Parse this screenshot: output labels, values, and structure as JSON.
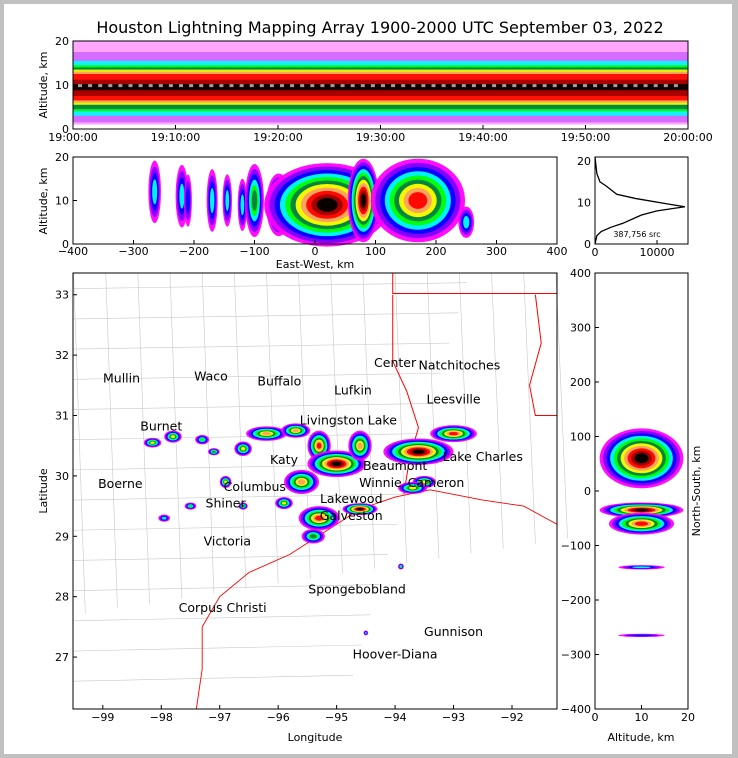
{
  "title": "Houston Lightning Mapping Array 1900-2000 UTC September 03, 2022",
  "colors": {
    "scale": [
      "#ffffff",
      "#ff00ff",
      "#8000ff",
      "#0000ff",
      "#00ffff",
      "#00ff00",
      "#008040",
      "#ffff00",
      "#ffa060",
      "#ff0000",
      "#a00000",
      "#000000",
      "#a0a0a0",
      "#ffffff"
    ],
    "border": "#ff0000",
    "county": "#c8c8c8",
    "site": "#0000ff",
    "site_special": "#ff8040"
  },
  "chart_data": [
    {
      "type": "heatmap",
      "name": "altitude-time",
      "ylabel": "Altitude, km",
      "ylim": [
        0,
        20
      ],
      "xlim": [
        "19:00:00",
        "20:00:00"
      ],
      "xticks": [
        "19:00:00",
        "19:10:00",
        "19:20:00",
        "19:30:00",
        "19:40:00",
        "19:50:00",
        "20:00:00"
      ],
      "yticks": [
        "0",
        "10",
        "20"
      ],
      "core_altitude_km": [
        6,
        13
      ],
      "peak_altitude_km": 9.5
    },
    {
      "type": "heatmap",
      "name": "altitude-eastwest",
      "xlabel": "East-West, km",
      "ylabel": "Altitude, km",
      "xlim": [
        -400,
        400
      ],
      "ylim": [
        0,
        20
      ],
      "xticks": [
        "−400",
        "−300",
        "−200",
        "−100",
        "0",
        "100",
        "200",
        "300",
        "400"
      ],
      "yticks": [
        "0",
        "10",
        "20"
      ],
      "cells": [
        {
          "x": -265,
          "z": 12,
          "w": 8,
          "h": 12,
          "i": 4
        },
        {
          "x": -220,
          "z": 11,
          "w": 8,
          "h": 12,
          "i": 4
        },
        {
          "x": -210,
          "z": 10,
          "w": 5,
          "h": 10,
          "i": 3
        },
        {
          "x": -170,
          "z": 10,
          "w": 7,
          "h": 12,
          "i": 4
        },
        {
          "x": -145,
          "z": 10,
          "w": 6,
          "h": 10,
          "i": 4
        },
        {
          "x": -120,
          "z": 9,
          "w": 6,
          "h": 10,
          "i": 4
        },
        {
          "x": -100,
          "z": 10,
          "w": 12,
          "h": 14,
          "i": 6
        },
        {
          "x": -60,
          "z": 9,
          "w": 16,
          "h": 12,
          "i": 7
        },
        {
          "x": 20,
          "z": 9,
          "w": 80,
          "h": 16,
          "i": 11
        },
        {
          "x": 80,
          "z": 10,
          "w": 20,
          "h": 16,
          "i": 11
        },
        {
          "x": 170,
          "z": 10,
          "w": 60,
          "h": 16,
          "i": 9
        },
        {
          "x": 250,
          "z": 5,
          "w": 10,
          "h": 6,
          "i": 4
        }
      ]
    },
    {
      "type": "line",
      "name": "altitude-histogram",
      "annotation": "387,756 src",
      "xlim": [
        0,
        15000
      ],
      "ylim": [
        0,
        21
      ],
      "xticks": [
        "0",
        "10000"
      ],
      "yticks": [
        "0",
        "10",
        "20"
      ],
      "x": [
        0,
        300,
        1000,
        2500,
        4500,
        6000,
        7500,
        10000,
        14500,
        12000,
        6500,
        3500,
        1800,
        800,
        300,
        0
      ],
      "y": [
        0,
        2,
        3,
        4,
        5,
        6,
        7,
        8,
        9,
        9.6,
        11,
        12,
        14,
        15,
        17,
        21
      ]
    },
    {
      "type": "heatmap",
      "name": "plan-view-map",
      "xlabel": "Longitude",
      "ylabel": "Latitude",
      "xlim": [
        -99.51,
        -91.23
      ],
      "ylim": [
        26.14,
        33.36
      ],
      "xticks": [
        "−99",
        "−98",
        "−97",
        "−96",
        "−95",
        "−94",
        "−93",
        "−92"
      ],
      "yticks": [
        "27",
        "28",
        "29",
        "30",
        "31",
        "32",
        "33"
      ],
      "cells": [
        {
          "lon": -98.15,
          "lat": 30.55,
          "w": 0.15,
          "h": 0.08,
          "i": 7
        },
        {
          "lon": -97.8,
          "lat": 30.65,
          "w": 0.15,
          "h": 0.1,
          "i": 7
        },
        {
          "lon": -97.3,
          "lat": 30.6,
          "w": 0.12,
          "h": 0.08,
          "i": 5
        },
        {
          "lon": -97.1,
          "lat": 30.4,
          "w": 0.1,
          "h": 0.06,
          "i": 6
        },
        {
          "lon": -96.6,
          "lat": 30.45,
          "w": 0.15,
          "h": 0.12,
          "i": 7
        },
        {
          "lon": -96.2,
          "lat": 30.7,
          "w": 0.35,
          "h": 0.12,
          "i": 8
        },
        {
          "lon": -95.7,
          "lat": 30.75,
          "w": 0.25,
          "h": 0.12,
          "i": 8
        },
        {
          "lon": -95.3,
          "lat": 30.5,
          "w": 0.2,
          "h": 0.25,
          "i": 9
        },
        {
          "lon": -95.0,
          "lat": 30.2,
          "w": 0.5,
          "h": 0.22,
          "i": 11
        },
        {
          "lon": -94.6,
          "lat": 30.5,
          "w": 0.2,
          "h": 0.25,
          "i": 8
        },
        {
          "lon": -93.6,
          "lat": 30.4,
          "w": 0.6,
          "h": 0.22,
          "i": 11
        },
        {
          "lon": -93.0,
          "lat": 30.7,
          "w": 0.4,
          "h": 0.14,
          "i": 9
        },
        {
          "lon": -93.5,
          "lat": 29.9,
          "w": 0.2,
          "h": 0.1,
          "i": 7
        },
        {
          "lon": -93.7,
          "lat": 29.8,
          "w": 0.25,
          "h": 0.1,
          "i": 7
        },
        {
          "lon": -95.3,
          "lat": 29.3,
          "w": 0.35,
          "h": 0.2,
          "i": 9
        },
        {
          "lon": -95.4,
          "lat": 29.0,
          "w": 0.2,
          "h": 0.12,
          "i": 6
        },
        {
          "lon": -94.6,
          "lat": 29.45,
          "w": 0.3,
          "h": 0.1,
          "i": 11
        },
        {
          "lon": -95.9,
          "lat": 29.55,
          "w": 0.15,
          "h": 0.1,
          "i": 7
        },
        {
          "lon": -95.6,
          "lat": 29.9,
          "w": 0.3,
          "h": 0.2,
          "i": 8
        },
        {
          "lon": -96.6,
          "lat": 29.5,
          "w": 0.08,
          "h": 0.06,
          "i": 6
        },
        {
          "lon": -96.9,
          "lat": 29.9,
          "w": 0.1,
          "h": 0.1,
          "i": 7
        },
        {
          "lon": -97.5,
          "lat": 29.5,
          "w": 0.1,
          "h": 0.06,
          "i": 5
        },
        {
          "lon": -97.95,
          "lat": 29.3,
          "w": 0.1,
          "h": 0.06,
          "i": 4
        },
        {
          "lon": -93.9,
          "lat": 28.5,
          "w": 0.05,
          "h": 0.05,
          "i": 5
        },
        {
          "lon": -94.5,
          "lat": 27.4,
          "w": 0.04,
          "h": 0.04,
          "i": 4
        }
      ],
      "places": [
        {
          "name": "Mullin",
          "lon": -98.68,
          "lat": 31.55,
          "kind": "special"
        },
        {
          "name": "Waco",
          "lon": -97.15,
          "lat": 31.58
        },
        {
          "name": "Buffalo",
          "lon": -95.98,
          "lat": 31.5
        },
        {
          "name": "Lufkin",
          "lon": -94.72,
          "lat": 31.35
        },
        {
          "name": "Center",
          "lon": -94.0,
          "lat": 31.8
        },
        {
          "name": "Natchitoches",
          "lon": -92.9,
          "lat": 31.76
        },
        {
          "name": "Leesville",
          "lon": -93.0,
          "lat": 31.2
        },
        {
          "name": "Burnet",
          "lon": -98.0,
          "lat": 30.75
        },
        {
          "name": "Boerne",
          "lon": -98.7,
          "lat": 29.8
        },
        {
          "name": "Lake Charles",
          "lon": -92.5,
          "lat": 30.25
        },
        {
          "name": "Beaumont",
          "lon": -94.0,
          "lat": 30.1
        },
        {
          "name": "Cameron",
          "lon": -93.3,
          "lat": 29.82
        },
        {
          "name": "Winnie",
          "lon": -94.25,
          "lat": 29.82
        },
        {
          "name": "Lakewood",
          "lon": -94.75,
          "lat": 29.55
        },
        {
          "name": "Galveston",
          "lon": -94.75,
          "lat": 29.35
        },
        {
          "name": "Columbus",
          "lon": -96.4,
          "lat": 29.75
        },
        {
          "name": "Shiner",
          "lon": -96.9,
          "lat": 29.48
        },
        {
          "name": "Victoria",
          "lon": -96.87,
          "lat": 28.85
        },
        {
          "name": "Livingston Lake",
          "lon": -94.8,
          "lat": 30.85
        },
        {
          "name": "Katy",
          "lon": -95.9,
          "lat": 30.2
        },
        {
          "name": "Corpus Christi",
          "lon": -96.95,
          "lat": 27.75
        },
        {
          "name": "Spongebobland",
          "lon": -94.65,
          "lat": 28.05,
          "kind": "site"
        },
        {
          "name": "Gunnison",
          "lon": -93.0,
          "lat": 27.35,
          "kind": "site"
        },
        {
          "name": "Hoover-Diana",
          "lon": -94.0,
          "lat": 26.98,
          "kind": "site"
        }
      ]
    },
    {
      "type": "heatmap",
      "name": "altitude-northsouth",
      "xlabel": "Altitude, km",
      "ylabel": "North-South, km",
      "xlim": [
        0,
        20
      ],
      "ylim": [
        -400,
        400
      ],
      "xticks": [
        "0",
        "10",
        "20"
      ],
      "yticks": [
        "400",
        "300",
        "200",
        "100",
        "0",
        "−100",
        "−200",
        "−300",
        "−400"
      ],
      "cells": [
        {
          "y": 60,
          "z": 10,
          "w": 9,
          "h": 55,
          "i": 11
        },
        {
          "y": -35,
          "z": 10,
          "w": 9,
          "h": 14,
          "i": 11
        },
        {
          "y": -60,
          "z": 10,
          "w": 7,
          "h": 20,
          "i": 9
        },
        {
          "y": -140,
          "z": 10,
          "w": 5,
          "h": 4,
          "i": 4
        },
        {
          "y": -265,
          "z": 10,
          "w": 5,
          "h": 3,
          "i": 3
        }
      ]
    }
  ]
}
